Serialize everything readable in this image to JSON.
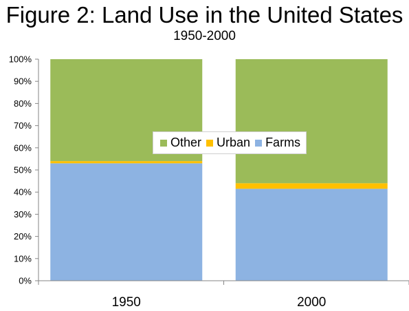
{
  "chart_data": {
    "type": "bar",
    "stacked": true,
    "title": "Figure 2: Land Use in the United States",
    "subtitle": "1950-2000",
    "categories": [
      "1950",
      "2000"
    ],
    "series": [
      {
        "name": "Farms",
        "color": "#8DB3E2",
        "values": [
          53,
          41.5
        ]
      },
      {
        "name": "Urban",
        "color": "#FFC000",
        "values": [
          1,
          2.5
        ]
      },
      {
        "name": "Other",
        "color": "#9BBB59",
        "values": [
          46,
          56
        ]
      }
    ],
    "ylim": [
      0,
      100
    ],
    "yticks": [
      "0%",
      "10%",
      "20%",
      "30%",
      "40%",
      "50%",
      "60%",
      "70%",
      "80%",
      "90%",
      "100%"
    ],
    "grid": false,
    "legend_position": "center",
    "legend_order": [
      "Other",
      "Urban",
      "Farms"
    ]
  }
}
